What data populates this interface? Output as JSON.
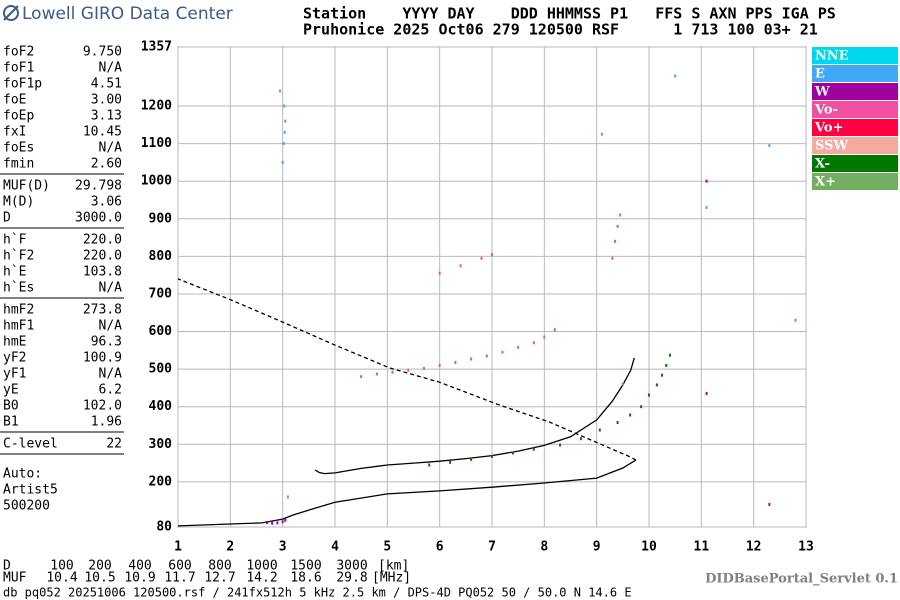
{
  "header": {
    "logo_text": "Lowell GIRO Data Center",
    "line1": "Station    YYYY DAY    DDD HHMMSS P1   FFS S AXN PPS IGA PS",
    "line2": "Pruhonice 2025 Oct06 279 120500 RSF      1 713 100 03+ 21"
  },
  "parameters": [
    [
      [
        "foF2",
        "9.750"
      ],
      [
        "foF1",
        "N/A"
      ],
      [
        "foF1p",
        "4.51"
      ],
      [
        "foE",
        "3.00"
      ],
      [
        "foEp",
        "3.13"
      ],
      [
        "fxI",
        "10.45"
      ],
      [
        "foEs",
        "N/A"
      ],
      [
        "fmin",
        "2.60"
      ]
    ],
    [
      [
        "MUF(D)",
        "29.798"
      ],
      [
        "M(D)",
        "3.06"
      ],
      [
        "D",
        "3000.0"
      ]
    ],
    [
      [
        "h`F",
        "220.0"
      ],
      [
        "h`F2",
        "220.0"
      ],
      [
        "h`E",
        "103.8"
      ],
      [
        "h`Es",
        "N/A"
      ]
    ],
    [
      [
        "hmF2",
        "273.8"
      ],
      [
        "hmF1",
        "N/A"
      ],
      [
        "hmE",
        "96.3"
      ],
      [
        "yF2",
        "100.9"
      ],
      [
        "yF1",
        "N/A"
      ],
      [
        "yE",
        "6.2"
      ],
      [
        "B0",
        "102.0"
      ],
      [
        "B1",
        "1.96"
      ]
    ],
    [
      [
        "C-level",
        "22"
      ]
    ]
  ],
  "autoscaling": [
    "Auto:",
    "Artist5",
    "500200"
  ],
  "legend": [
    {
      "name": "NNE",
      "color": "#00d8f0"
    },
    {
      "name": "E",
      "color": "#3fa9f5"
    },
    {
      "name": "W",
      "color": "#a0009e"
    },
    {
      "name": "Vo-",
      "color": "#f050a0"
    },
    {
      "name": "Vo+",
      "color": "#ff0040"
    },
    {
      "name": "SSW",
      "color": "#f5aaa0"
    },
    {
      "name": "X-",
      "color": "#007800"
    },
    {
      "name": "X+",
      "color": "#70b060"
    }
  ],
  "chart_data": {
    "type": "ionogram",
    "xlim": [
      1,
      13
    ],
    "xticks": [
      1,
      2,
      3,
      4,
      5,
      6,
      7,
      8,
      9,
      10,
      11,
      12,
      13
    ],
    "ylim": [
      80,
      1357
    ],
    "yticks": [
      80,
      200,
      300,
      400,
      500,
      600,
      700,
      800,
      900,
      1000,
      1100,
      1200,
      1357
    ],
    "grid": true,
    "series": [
      {
        "style": "solid",
        "color": "#000000",
        "x": [
          3.62,
          3.7,
          3.8,
          4.0,
          4.5,
          5,
          5.5,
          6,
          6.5,
          7,
          7.5,
          8,
          8.5,
          9,
          9.3,
          9.5,
          9.65,
          9.72
        ],
        "values": [
          232,
          225,
          222,
          224,
          236,
          245,
          250,
          255,
          262,
          270,
          282,
          297,
          320,
          365,
          415,
          458,
          497,
          530
        ]
      },
      {
        "style": "solid",
        "color": "#000000",
        "x": [
          1,
          2.6,
          3,
          3.2,
          3.5,
          4,
          5,
          6,
          7,
          8,
          9,
          9.5,
          9.75
        ],
        "values": [
          83,
          91,
          101,
          112,
          125,
          146,
          168,
          176,
          186,
          197,
          210,
          237,
          258
        ]
      },
      {
        "style": "dashed",
        "color": "#000000",
        "x": [
          9.75,
          9.65,
          8.9,
          8.1,
          7.15,
          6,
          5.05,
          4,
          3,
          2,
          1
        ],
        "values": [
          258,
          266,
          311,
          359,
          404,
          465,
          503,
          564,
          625,
          685,
          740
        ]
      },
      {
        "style": "points",
        "color": "#007800",
        "x": [
          5.8,
          6.2,
          6.6,
          7.0,
          7.4,
          7.8,
          8.3,
          8.7,
          9.06,
          9.4,
          9.64,
          9.85,
          10.0,
          10.15,
          10.25,
          10.33,
          10.4
        ],
        "values": [
          245,
          252,
          260,
          268,
          277,
          287,
          298,
          315,
          338,
          358,
          378,
          400,
          431,
          458,
          484,
          510,
          537
        ]
      },
      {
        "style": "points",
        "color": "#f050a0",
        "x": [
          4.5,
          4.8,
          5.1,
          5.4,
          5.7,
          6.0,
          6.3,
          6.6,
          6.9,
          7.2,
          7.5,
          7.8,
          8.0,
          8.2,
          6.0,
          6.4,
          6.8,
          7.0,
          9.3,
          9.35,
          9.4,
          9.45,
          9.5
        ],
        "values": [
          480,
          487,
          492,
          497,
          502,
          510,
          518,
          527,
          535,
          545,
          558,
          570,
          585,
          605,
          755,
          775,
          795,
          805,
          795,
          840,
          880,
          910,
          460
        ]
      },
      {
        "style": "points",
        "color": "#3fa9f5",
        "x": [
          3.0,
          3.02,
          3.04,
          3.05,
          3.03,
          3.1,
          2.95,
          9.1,
          10.5,
          11.1,
          12.3,
          12.8
        ],
        "values": [
          1050,
          1100,
          1130,
          1160,
          1200,
          160,
          1240,
          1125,
          1280,
          930,
          1095,
          630
        ]
      },
      {
        "style": "points",
        "color": "#a0009e",
        "x": [
          2.7,
          2.8,
          2.9,
          3.0,
          3.05,
          11.1,
          11.1,
          12.3
        ],
        "values": [
          92,
          90,
          91,
          94,
          98,
          1000,
          435,
          140
        ]
      }
    ]
  },
  "distance_table": {
    "d_label": "D",
    "d_values": [
      "100",
      "200",
      "400",
      "600",
      "800",
      "1000",
      "1500",
      "3000"
    ],
    "d_unit": "[km]",
    "muf_label": "MUF",
    "muf_values": [
      "10.4",
      "10.5",
      "10.9",
      "11.7",
      "12.7",
      "14.2",
      "18.6",
      "29.8"
    ],
    "muf_unit": "[MHz]"
  },
  "servlet": "DIDBasePortal_Servlet 0.1",
  "footer": "db pq052 20251006 120500.rsf / 241fx512h 5 kHz 2.5 km / DPS-4D PQ052 50 / 50.0 N 14.6 E"
}
